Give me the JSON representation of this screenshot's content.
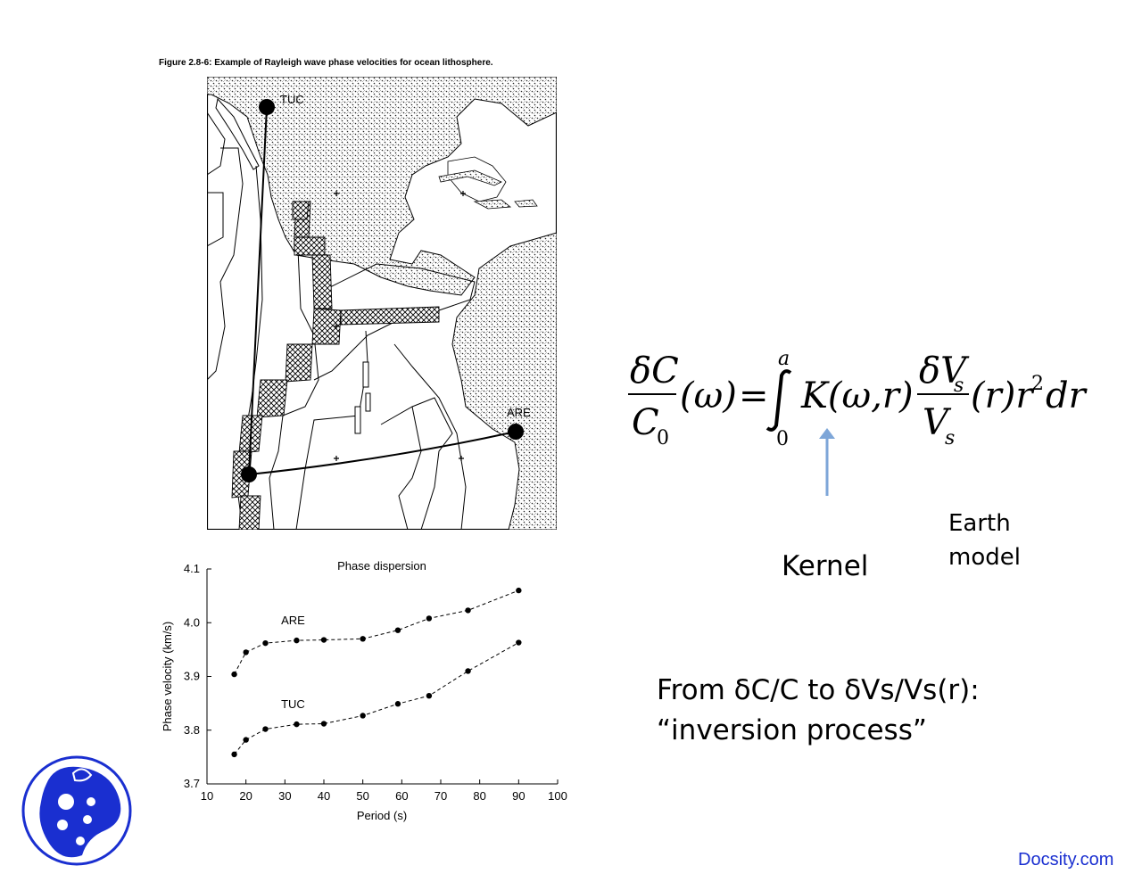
{
  "figure": {
    "caption": "Figure 2.8-6: Example of Rayleigh wave phase velocities for ocean lithosphere.",
    "stations": [
      {
        "label": "TUC"
      },
      {
        "label": "ARE"
      }
    ]
  },
  "chart_data": {
    "type": "line",
    "title": "Phase dispersion",
    "xlabel": "Period (s)",
    "ylabel": "Phase velocity (km/s)",
    "xlim": [
      10,
      100
    ],
    "ylim": [
      3.7,
      4.1
    ],
    "xticks": [
      "10",
      "20",
      "30",
      "40",
      "50",
      "60",
      "70",
      "80",
      "90",
      "100"
    ],
    "yticks": [
      "3.7",
      "3.8",
      "3.9",
      "4.0",
      "4.1"
    ],
    "grid": false,
    "series": [
      {
        "name": "ARE",
        "x": [
          17,
          20,
          25,
          33,
          40,
          50,
          59,
          67,
          77,
          90
        ],
        "y": [
          3.904,
          3.945,
          3.962,
          3.967,
          3.968,
          3.97,
          3.986,
          4.008,
          4.023,
          4.06
        ]
      },
      {
        "name": "TUC",
        "x": [
          17,
          20,
          25,
          33,
          40,
          50,
          59,
          67,
          77,
          90
        ],
        "y": [
          3.755,
          3.782,
          3.802,
          3.811,
          3.812,
          3.827,
          3.849,
          3.864,
          3.91,
          3.963
        ]
      }
    ]
  },
  "equation": {
    "lhs_num": "δC",
    "lhs_den": "C",
    "lhs_den_sub": "0",
    "omega_paren": "(ω)",
    "equals": "=",
    "int_upper": "a",
    "int_lower": "0",
    "kernel_term": "K(ω,r)",
    "rhs_num": "δV",
    "rhs_num_sub": "s",
    "rhs_den": "V",
    "rhs_den_sub": "s",
    "tail": "(r)r",
    "tail_sup": "2",
    "tail_end": "dr"
  },
  "annotations": {
    "kernel": "Kernel",
    "earth_model": "Earth\nmodel",
    "arrow_color": "#7ea6d8",
    "inversion_line1": "From δC/C to δVs/Vs(r):",
    "inversion_line2": "“inversion process”"
  },
  "branding": {
    "site": "Docsity.com",
    "logo_icon": "docsity-logo-icon",
    "brand_color": "#1a2fd0"
  }
}
